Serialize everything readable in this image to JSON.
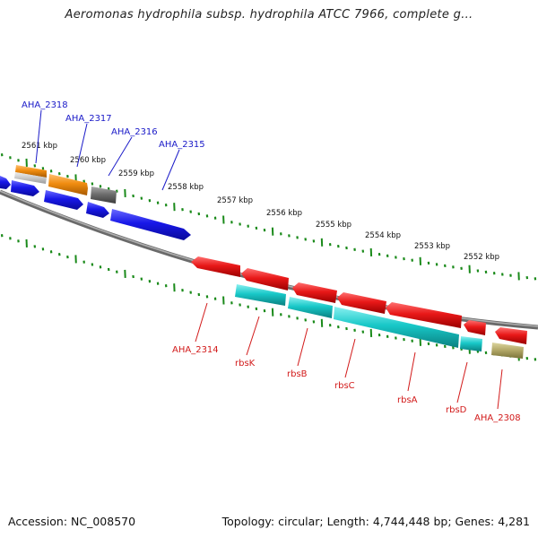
{
  "title": "Aeromonas hydrophila subsp. hydrophila ATCC 7966, complete g...",
  "footer": {
    "accession": "Accession: NC_008570",
    "summary": "Topology: circular; Length: 4,744,448 bp; Genes: 4,281"
  },
  "colors": {
    "backbone": "#888888",
    "tick": "#1a8a1a",
    "forward_label": "#1a1ac8",
    "reverse_label": "#d21a1a",
    "blue": "#1818e8",
    "orange": "#f08c10",
    "gray": "#777777",
    "silver": "#c8c8c8",
    "red": "#e81818",
    "cyan": "#18c8c8",
    "olive": "#b4aa6a"
  },
  "scale_labels": [
    "2561 kbp",
    "2560 kbp",
    "2559 kbp",
    "2558 kbp",
    "2557 kbp",
    "2556 kbp",
    "2555 kbp",
    "2554 kbp",
    "2553 kbp",
    "2552 kbp"
  ],
  "forward_labels": [
    "AHA_2318",
    "AHA_2317",
    "AHA_2316",
    "AHA_2315"
  ],
  "reverse_labels": [
    "AHA_2314",
    "rbsK",
    "rbsB",
    "rbsC",
    "rbsA",
    "rbsD",
    "AHA_2308"
  ]
}
